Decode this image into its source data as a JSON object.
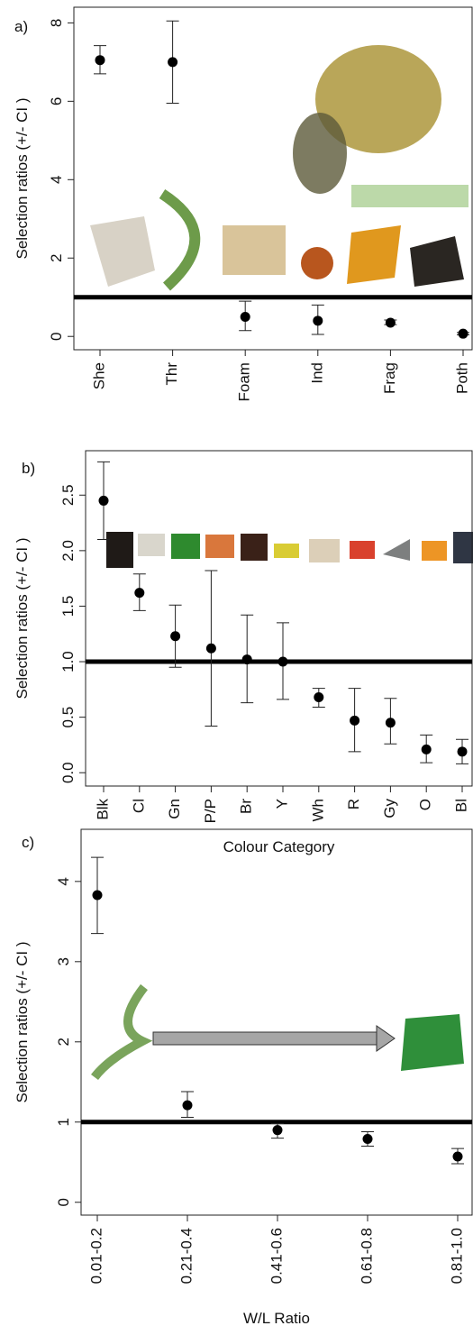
{
  "chart_data": [
    {
      "type": "errorbar",
      "panel_label": "a)",
      "ylabel": "Selection ratios (+/- CI )",
      "categories": [
        "She",
        "Thr",
        "Foam",
        "Ind",
        "Frag",
        "Poth"
      ],
      "values": [
        7.05,
        7.0,
        0.5,
        0.4,
        0.35,
        0.07
      ],
      "ci_low": [
        6.7,
        5.95,
        0.15,
        0.05,
        0.3,
        0.04
      ],
      "ci_high": [
        7.42,
        8.05,
        0.9,
        0.8,
        0.42,
        0.1
      ],
      "color": "#000000",
      "hline": 1,
      "ylim": [
        -0.34,
        8.4
      ],
      "yticks": [
        0,
        2,
        4,
        6,
        8
      ]
    },
    {
      "type": "errorbar",
      "panel_label": "b)",
      "ylabel": "Selection ratios (+/- CI )",
      "xlabel": "Colour Category",
      "categories": [
        "Blk",
        "Cl",
        "Gn",
        "P/P",
        "Br",
        "Y",
        "Wh",
        "R",
        "Gy",
        "O",
        "Bl"
      ],
      "values": [
        2.45,
        1.62,
        1.23,
        1.12,
        1.02,
        1.0,
        0.68,
        0.47,
        0.45,
        0.21,
        0.19
      ],
      "ci_low": [
        2.1,
        1.46,
        0.95,
        0.42,
        0.63,
        0.66,
        0.59,
        0.19,
        0.26,
        0.09,
        0.08
      ],
      "ci_high": [
        2.8,
        1.79,
        1.51,
        1.82,
        1.42,
        1.35,
        0.76,
        0.76,
        0.67,
        0.34,
        0.3
      ],
      "color": "#000000",
      "hline": 1,
      "ylim": [
        -0.12,
        2.9
      ],
      "yticks": [
        {
          "value": 0,
          "label": "0.0"
        },
        0.5,
        {
          "value": 1,
          "label": "1.0"
        },
        1.5,
        {
          "value": 2,
          "label": "2.0"
        },
        2.5
      ]
    },
    {
      "type": "errorbar",
      "panel_label": "c)",
      "ylabel": "Selection ratios (+/- CI )",
      "xlabel": "W/L Ratio",
      "categories": [
        "0.01-0.2",
        "0.21-0.4",
        "0.41-0.6",
        "0.61-0.8",
        "0.81-1.0"
      ],
      "values": [
        3.83,
        1.21,
        0.9,
        0.79,
        0.57
      ],
      "ci_low": [
        3.35,
        1.06,
        0.8,
        0.7,
        0.48
      ],
      "ci_high": [
        4.3,
        1.38,
        0.98,
        0.88,
        0.67
      ],
      "color": "#000000",
      "hline": 1,
      "ylim": [
        -0.16,
        4.65
      ],
      "yticks": [
        0,
        1,
        2,
        3,
        4
      ]
    }
  ]
}
